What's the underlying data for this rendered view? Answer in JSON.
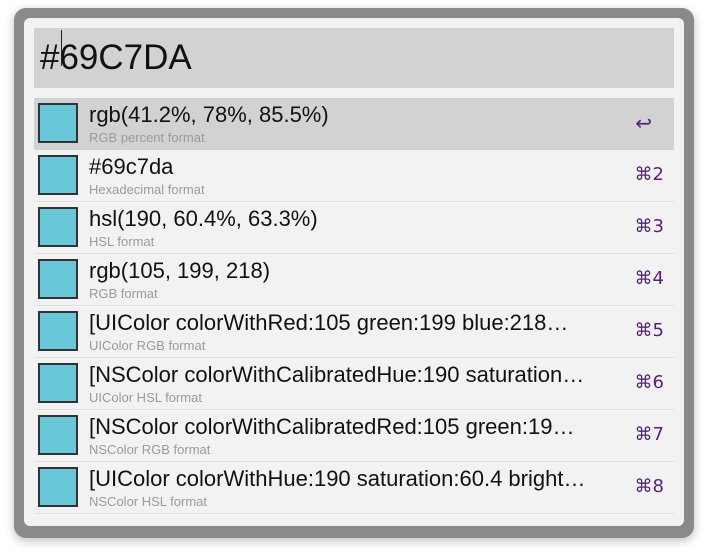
{
  "query": {
    "value": "#69C7DA"
  },
  "swatch_color": "#69c7da",
  "results": [
    {
      "title": "rgb(41.2%, 78%, 85.5%)",
      "subtitle": "RGB percent format",
      "shortcut": "↩",
      "selected": true
    },
    {
      "title": "#69c7da",
      "subtitle": "Hexadecimal format",
      "shortcut": "⌘2",
      "selected": false
    },
    {
      "title": "hsl(190, 60.4%, 63.3%)",
      "subtitle": "HSL format",
      "shortcut": "⌘3",
      "selected": false
    },
    {
      "title": "rgb(105, 199, 218)",
      "subtitle": "RGB format",
      "shortcut": "⌘4",
      "selected": false
    },
    {
      "title": "[UIColor colorWithRed:105 green:199 blue:218…",
      "subtitle": "UIColor RGB format",
      "shortcut": "⌘5",
      "selected": false
    },
    {
      "title": "[NSColor colorWithCalibratedHue:190 saturation…",
      "subtitle": "UIColor HSL format",
      "shortcut": "⌘6",
      "selected": false
    },
    {
      "title": "[NSColor colorWithCalibratedRed:105 green:19…",
      "subtitle": "NSColor RGB format",
      "shortcut": "⌘7",
      "selected": false
    },
    {
      "title": "[UIColor colorWithHue:190 saturation:60.4 bright…",
      "subtitle": "NSColor HSL format",
      "shortcut": "⌘8",
      "selected": false
    }
  ]
}
